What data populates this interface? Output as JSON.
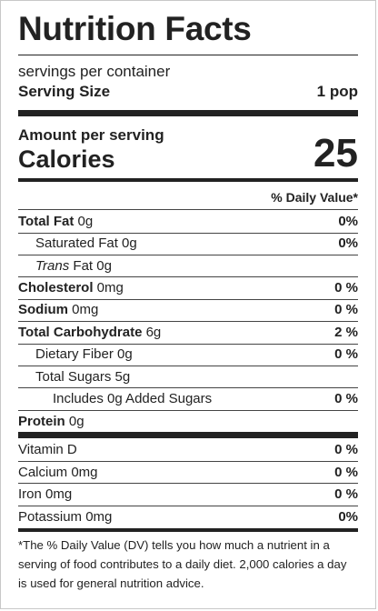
{
  "title": "Nutrition Facts",
  "servings_per_container": "servings per container",
  "serving_size": {
    "label": "Serving Size",
    "value": "1 pop"
  },
  "amount_per_serving": "Amount per serving",
  "calories": {
    "label": "Calories",
    "value": "25"
  },
  "daily_value_header": "% Daily Value*",
  "nutrients": [
    {
      "label": "Total Fat",
      "amount": " 0g",
      "dv": "0%"
    },
    {
      "label": "Saturated Fat",
      "amount": " 0g",
      "dv": "0%"
    },
    {
      "label": "Trans",
      "amount": " Fat 0g",
      "dv": ""
    },
    {
      "label": "Cholesterol",
      "amount": " 0mg",
      "dv": "0 %"
    },
    {
      "label": "Sodium",
      "amount": " 0mg",
      "dv": "0 %"
    },
    {
      "label": "Total Carbohydrate",
      "amount": " 6g",
      "dv": "2 %"
    },
    {
      "label": "Dietary Fiber",
      "amount": " 0g",
      "dv": "0 %"
    },
    {
      "label": "Total Sugars",
      "amount": " 5g",
      "dv": ""
    },
    {
      "label": "Includes 0g Added Sugars",
      "amount": "",
      "dv": "0 %"
    },
    {
      "label": "Protein",
      "amount": " 0g",
      "dv": ""
    }
  ],
  "vitamins": [
    {
      "label": "Vitamin D",
      "dv": "0 %"
    },
    {
      "label": "Calcium 0mg",
      "dv": "0 %"
    },
    {
      "label": "Iron 0mg",
      "dv": "0 %"
    },
    {
      "label": "Potassium 0mg",
      "dv": "0%"
    }
  ],
  "footnote": "*The % Daily Value (DV) tells you how much a nutrient in a serving of food contributes to a daily diet. 2,000 calories a day is used for general nutrition advice."
}
